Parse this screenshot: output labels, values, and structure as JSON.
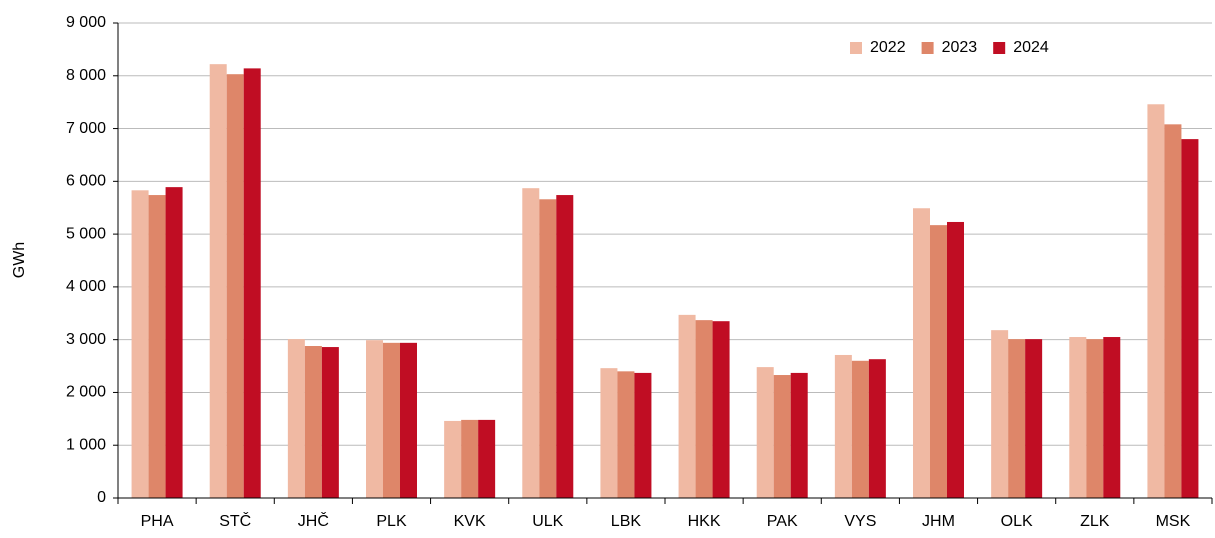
{
  "chart_data": {
    "type": "bar",
    "y_label": "GWh",
    "categories": [
      "PHA",
      "STČ",
      "JHČ",
      "PLK",
      "KVK",
      "ULK",
      "LBK",
      "HKK",
      "PAK",
      "VYS",
      "JHM",
      "OLK",
      "ZLK",
      "MSK"
    ],
    "series": [
      {
        "name": "2022",
        "color": "#f0b9a3",
        "values": [
          5830,
          8220,
          3010,
          2990,
          1460,
          5870,
          2460,
          3470,
          2480,
          2710,
          5490,
          3180,
          3050,
          7460
        ]
      },
      {
        "name": "2023",
        "color": "#de8669",
        "values": [
          5740,
          8030,
          2880,
          2940,
          1480,
          5660,
          2400,
          3370,
          2330,
          2600,
          5170,
          3010,
          3010,
          7080
        ]
      },
      {
        "name": "2024",
        "color": "#c00d23",
        "values": [
          5890,
          8140,
          2860,
          2940,
          1480,
          5740,
          2370,
          3350,
          2370,
          2630,
          5230,
          3010,
          3050,
          6800
        ]
      }
    ],
    "ylim": [
      0,
      9000
    ],
    "yticks": [
      0,
      {
        "value": 1000,
        "label": "1 000"
      },
      {
        "value": 2000,
        "label": "2 000"
      },
      {
        "value": 3000,
        "label": "3 000"
      },
      {
        "value": 4000,
        "label": "4 000"
      },
      {
        "value": 5000,
        "label": "5 000"
      },
      {
        "value": 6000,
        "label": "6 000"
      },
      {
        "value": 7000,
        "label": "7 000"
      },
      {
        "value": 8000,
        "label": "8 000"
      },
      {
        "value": 9000,
        "label": "9 000"
      }
    ],
    "grid": true,
    "legend": "top-right"
  }
}
